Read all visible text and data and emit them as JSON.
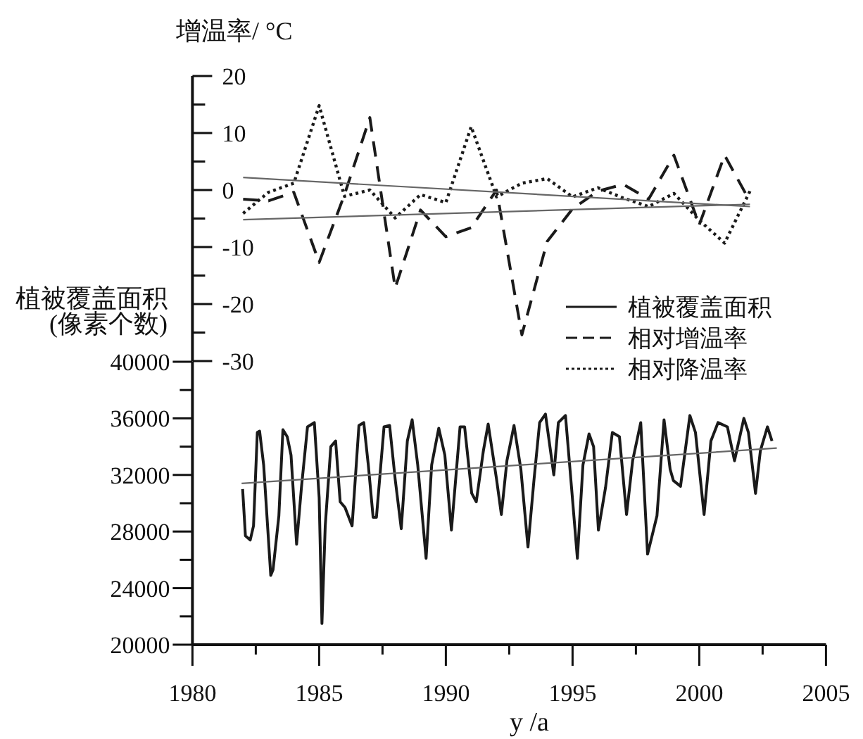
{
  "chart_data": [
    {
      "type": "line",
      "ylabel": "增温率/ °C",
      "xlim": [
        1980,
        2005
      ],
      "ylim": [
        -30,
        20
      ],
      "tick_labels": "y",
      "legend": "bottom right",
      "yticks": [
        20,
        {
          "value": 15,
          "label": null
        },
        10,
        {
          "value": 5,
          "label": null
        },
        0,
        {
          "value": -5,
          "label": null
        },
        -10,
        {
          "value": -15,
          "label": null
        },
        -20,
        {
          "value": -25,
          "label": null
        },
        -30
      ],
      "x": [
        1982,
        1983,
        1984,
        1985,
        1986,
        1987,
        1988,
        1989,
        1990,
        1991,
        1992,
        1993,
        1994,
        1995,
        1996,
        1997,
        1998,
        1999,
        2000,
        2001,
        2002
      ],
      "series": [
        {
          "name": "相对增温率",
          "color": "#1a1a1a",
          "line_style": "dashed",
          "values": [
            -1.6,
            -1.9,
            -0.4,
            -12.7,
            -0.8,
            12.7,
            -17.2,
            -3.5,
            -8.2,
            -6.6,
            0,
            -25.4,
            -9.0,
            -3.3,
            -0.2,
            1.0,
            -1.6,
            6.1,
            -6.1,
            6.1,
            -2.0
          ]
        },
        {
          "name": "相对降温率",
          "color": "#1a1a1a",
          "line_style": "dotted",
          "values": [
            -4.1,
            -0.4,
            1.2,
            14.8,
            -1.1,
            0,
            -4.9,
            -0.8,
            -2.2,
            11.1,
            -1.2,
            1.2,
            2.0,
            -1.2,
            0.4,
            -1.4,
            -2.9,
            -0.6,
            -5.3,
            -9.3,
            -0.2
          ]
        },
        {
          "color": "#666666",
          "line_style": "solid",
          "x": [
            1982,
            2002
          ],
          "values": [
            2.2,
            -2.9
          ]
        },
        {
          "color": "#666666",
          "line_style": "solid",
          "x": [
            1982,
            2002
          ],
          "values": [
            -5.2,
            -2.5
          ]
        }
      ]
    },
    {
      "type": "line",
      "ylabel": "植被覆盖面积\n(像素个数)",
      "xlabel": "y /a",
      "xlim": [
        1980,
        2005
      ],
      "ylim": [
        20000,
        40000
      ],
      "legend": "top right",
      "xticks": [
        1980,
        {
          "value": 1982.5,
          "label": null
        },
        1985,
        {
          "value": 1987.5,
          "label": null
        },
        1990,
        {
          "value": 1992.5,
          "label": null
        },
        1995,
        {
          "value": 1997.5,
          "label": null
        },
        2000,
        {
          "value": 2002.5,
          "label": null
        },
        2005
      ],
      "yticks": [
        20000,
        {
          "value": 22000,
          "label": null
        },
        24000,
        {
          "value": 26000,
          "label": null
        },
        28000,
        {
          "value": 30000,
          "label": null
        },
        32000,
        {
          "value": 34000,
          "label": null
        },
        36000,
        {
          "value": 38000,
          "label": null
        },
        40000
      ],
      "series": [
        {
          "name": "植被覆盖面积",
          "color": "#1a1a1a",
          "line_style": "solid",
          "x": [
            1981.98,
            1982.09,
            1982.28,
            1982.41,
            1982.56,
            1982.65,
            1982.81,
            1983.09,
            1983.18,
            1983.41,
            1983.57,
            1983.74,
            1983.89,
            1984.11,
            1984.3,
            1984.54,
            1984.81,
            1985.0,
            1985.11,
            1985.24,
            1985.46,
            1985.65,
            1985.83,
            1986.02,
            1986.3,
            1986.57,
            1986.76,
            1986.94,
            1987.13,
            1987.26,
            1987.56,
            1987.78,
            1988.0,
            1988.24,
            1988.48,
            1988.67,
            1988.89,
            1989.22,
            1989.44,
            1989.72,
            1989.96,
            1990.22,
            1990.56,
            1990.74,
            1991.02,
            1991.2,
            1991.48,
            1991.67,
            1992.0,
            1992.19,
            1992.41,
            1992.69,
            1992.96,
            1993.24,
            1993.48,
            1993.7,
            1993.93,
            1994.26,
            1994.44,
            1994.72,
            1994.96,
            1995.19,
            1995.41,
            1995.65,
            1995.83,
            1996.02,
            1996.3,
            1996.57,
            1996.85,
            1997.13,
            1997.37,
            1997.69,
            1997.96,
            1998.33,
            1998.61,
            1998.85,
            1998.98,
            1999.26,
            1999.63,
            1999.85,
            2000.19,
            2000.46,
            2000.74,
            2001.11,
            2001.39,
            2001.76,
            2001.94,
            2002.22,
            2002.41,
            2002.69,
            2002.87
          ],
          "values": [
            31000,
            27700,
            27400,
            28400,
            35000,
            35100,
            32700,
            24900,
            25300,
            29100,
            35200,
            34700,
            33400,
            27100,
            31100,
            35400,
            35700,
            30400,
            21500,
            28400,
            34000,
            34400,
            30100,
            29700,
            28400,
            35500,
            35700,
            32700,
            29000,
            29000,
            35400,
            35500,
            31700,
            28200,
            34400,
            35900,
            32700,
            26100,
            32700,
            35300,
            33400,
            28100,
            35400,
            35400,
            30700,
            30100,
            33700,
            35600,
            31700,
            29200,
            33000,
            35500,
            32400,
            26900,
            31700,
            35700,
            36300,
            32000,
            35700,
            36200,
            31100,
            26100,
            32700,
            34900,
            34000,
            28100,
            31100,
            35000,
            34700,
            29200,
            33000,
            35700,
            26400,
            29100,
            35900,
            32400,
            31600,
            31200,
            36200,
            35000,
            29200,
            34400,
            35700,
            35400,
            33000,
            36000,
            35000,
            30700,
            33700,
            35400,
            34400
          ]
        },
        {
          "color": "#666666",
          "line_style": "solid",
          "x": [
            1981.94,
            2003.06
          ],
          "values": [
            31400,
            33900
          ]
        }
      ]
    }
  ]
}
